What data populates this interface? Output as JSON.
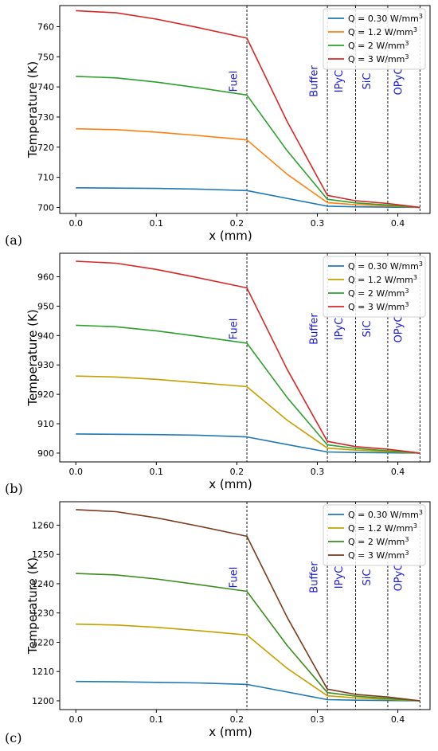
{
  "chart_data": [
    {
      "type": "line",
      "panel_label": "(a)",
      "xlabel": "x (mm)",
      "ylabel": "Temperature (K)",
      "xlim": [
        -0.02,
        0.44
      ],
      "ylim": [
        698,
        767
      ],
      "x_ticks": [
        0.0,
        0.1,
        0.2,
        0.3,
        0.4
      ],
      "x_tick_labels": [
        "0.0",
        "0.1",
        "0.2",
        "0.3",
        "0.4"
      ],
      "y_ticks": [
        700,
        710,
        720,
        730,
        740,
        750,
        760
      ],
      "y_tick_labels": [
        "700",
        "710",
        "720",
        "730",
        "740",
        "750",
        "760"
      ],
      "boundaries": [
        0.2125,
        0.3125,
        0.3475,
        0.3875,
        0.4275
      ],
      "regions": [
        {
          "label": "Fuel",
          "x": 0.2
        },
        {
          "label": "Buffer",
          "x": 0.3
        },
        {
          "label": "IPyC",
          "x": 0.331
        },
        {
          "label": "SiC",
          "x": 0.366
        },
        {
          "label": "OPyC",
          "x": 0.405
        }
      ],
      "legend": {
        "position": "top-right"
      },
      "series": [
        {
          "name": "Q = 0.30 W/mm",
          "sup": "3",
          "color": "#1f77b4",
          "x": [
            0,
            0.05,
            0.1,
            0.15,
            0.2125,
            0.2625,
            0.3125,
            0.3475,
            0.3875,
            0.4275
          ],
          "y": [
            706.5,
            706.4,
            706.3,
            706.1,
            705.6,
            703.0,
            700.4,
            700.2,
            700.1,
            700.0
          ]
        },
        {
          "name": "Q = 1.2 W/mm",
          "sup": "3",
          "color": "#ff7f0e",
          "x": [
            0,
            0.05,
            0.1,
            0.15,
            0.2125,
            0.2625,
            0.3125,
            0.3475,
            0.3875,
            0.4275
          ],
          "y": [
            726.1,
            725.8,
            725.0,
            723.9,
            722.4,
            711.0,
            701.6,
            700.9,
            700.5,
            700.0
          ]
        },
        {
          "name": "Q = 2 W/mm",
          "sup": "3",
          "color": "#2ca02c",
          "x": [
            0,
            0.05,
            0.1,
            0.15,
            0.2125,
            0.2625,
            0.3125,
            0.3475,
            0.3875,
            0.4275
          ],
          "y": [
            743.5,
            743.0,
            741.6,
            739.8,
            737.3,
            718.8,
            702.7,
            701.5,
            700.8,
            700.0
          ]
        },
        {
          "name": "Q = 3 W/mm",
          "sup": "3",
          "color": "#d62728",
          "x": [
            0,
            0.05,
            0.1,
            0.15,
            0.2125,
            0.2625,
            0.3125,
            0.3475,
            0.3875,
            0.4275
          ],
          "y": [
            765.3,
            764.6,
            762.5,
            759.8,
            756.2,
            728.5,
            704.0,
            702.2,
            701.3,
            700.0
          ]
        }
      ]
    },
    {
      "type": "line",
      "panel_label": "(b)",
      "xlabel": "x (mm)",
      "ylabel": "Temperature (K)",
      "xlim": [
        -0.02,
        0.44
      ],
      "ylim": [
        897,
        968
      ],
      "x_ticks": [
        0.0,
        0.1,
        0.2,
        0.3,
        0.4
      ],
      "x_tick_labels": [
        "0.0",
        "0.1",
        "0.2",
        "0.3",
        "0.4"
      ],
      "y_ticks": [
        900,
        910,
        920,
        930,
        940,
        950,
        960
      ],
      "y_tick_labels": [
        "900",
        "910",
        "920",
        "930",
        "940",
        "950",
        "960"
      ],
      "boundaries": [
        0.2125,
        0.3125,
        0.3475,
        0.3875,
        0.4275
      ],
      "regions": [
        {
          "label": "Fuel",
          "x": 0.2
        },
        {
          "label": "Buffer",
          "x": 0.3
        },
        {
          "label": "IPyC",
          "x": 0.331
        },
        {
          "label": "SiC",
          "x": 0.366
        },
        {
          "label": "OPyC",
          "x": 0.405
        }
      ],
      "legend": {
        "position": "top-right"
      },
      "series": [
        {
          "name": "Q = 0.30 W/mm",
          "sup": "3",
          "color": "#1f77b4",
          "x": [
            0,
            0.05,
            0.1,
            0.15,
            0.2125,
            0.2625,
            0.3125,
            0.3475,
            0.3875,
            0.4275
          ],
          "y": [
            906.5,
            906.4,
            906.3,
            906.1,
            905.5,
            902.9,
            900.4,
            900.2,
            900.1,
            900.0
          ]
        },
        {
          "name": "Q = 1.2 W/mm",
          "sup": "3",
          "color": "#c4a000",
          "x": [
            0,
            0.05,
            0.1,
            0.15,
            0.2125,
            0.2625,
            0.3125,
            0.3475,
            0.3875,
            0.4275
          ],
          "y": [
            926.2,
            925.9,
            925.1,
            924.0,
            922.6,
            911.2,
            901.7,
            901.0,
            900.5,
            900.0
          ]
        },
        {
          "name": "Q = 2 W/mm",
          "sup": "3",
          "color": "#2ca02c",
          "x": [
            0,
            0.05,
            0.1,
            0.15,
            0.2125,
            0.2625,
            0.3125,
            0.3475,
            0.3875,
            0.4275
          ],
          "y": [
            943.5,
            943.0,
            941.6,
            939.8,
            937.4,
            918.9,
            902.8,
            901.6,
            900.8,
            900.0
          ]
        },
        {
          "name": "Q = 3 W/mm",
          "sup": "3",
          "color": "#d62728",
          "x": [
            0,
            0.05,
            0.1,
            0.15,
            0.2125,
            0.2625,
            0.3125,
            0.3475,
            0.3875,
            0.4275
          ],
          "y": [
            965.3,
            964.6,
            962.5,
            959.8,
            956.2,
            928.5,
            904.0,
            902.2,
            901.3,
            900.0
          ]
        }
      ]
    },
    {
      "type": "line",
      "panel_label": "(c)",
      "xlabel": "x (mm)",
      "ylabel": "Temperature (K)",
      "xlim": [
        -0.02,
        0.44
      ],
      "ylim": [
        1197,
        1268
      ],
      "x_ticks": [
        0.0,
        0.1,
        0.2,
        0.3,
        0.4
      ],
      "x_tick_labels": [
        "0.0",
        "0.1",
        "0.2",
        "0.3",
        "0.4"
      ],
      "y_ticks": [
        1200,
        1210,
        1220,
        1230,
        1240,
        1250,
        1260
      ],
      "y_tick_labels": [
        "1200",
        "1210",
        "1220",
        "1230",
        "1240",
        "1250",
        "1260"
      ],
      "boundaries": [
        0.2125,
        0.3125,
        0.3475,
        0.3875,
        0.4275
      ],
      "regions": [
        {
          "label": "Fuel",
          "x": 0.2
        },
        {
          "label": "Buffer",
          "x": 0.3
        },
        {
          "label": "IPyC",
          "x": 0.331
        },
        {
          "label": "SiC",
          "x": 0.366
        },
        {
          "label": "OPyC",
          "x": 0.405
        }
      ],
      "legend": {
        "position": "top-right"
      },
      "series": [
        {
          "name": "Q = 0.30 W/mm",
          "sup": "3",
          "color": "#1f77b4",
          "x": [
            0,
            0.05,
            0.1,
            0.15,
            0.2125,
            0.2625,
            0.3125,
            0.3475,
            0.3875,
            0.4275
          ],
          "y": [
            1206.6,
            1206.5,
            1206.3,
            1206.1,
            1205.6,
            1203.0,
            1200.4,
            1200.2,
            1200.1,
            1200.0
          ]
        },
        {
          "name": "Q = 1.2 W/mm",
          "sup": "3",
          "color": "#c4a000",
          "x": [
            0,
            0.05,
            0.1,
            0.15,
            0.2125,
            0.2625,
            0.3125,
            0.3475,
            0.3875,
            0.4275
          ],
          "y": [
            1226.2,
            1225.9,
            1225.1,
            1224.0,
            1222.5,
            1211.1,
            1201.7,
            1201.0,
            1200.5,
            1200.0
          ]
        },
        {
          "name": "Q = 2 W/mm",
          "sup": "3",
          "color": "#3c8c1e",
          "x": [
            0,
            0.05,
            0.1,
            0.15,
            0.2125,
            0.2625,
            0.3125,
            0.3475,
            0.3875,
            0.4275
          ],
          "y": [
            1243.5,
            1243.0,
            1241.6,
            1239.8,
            1237.4,
            1218.9,
            1202.8,
            1201.6,
            1200.8,
            1200.0
          ]
        },
        {
          "name": "Q = 3 W/mm",
          "sup": "3",
          "color": "#7a3b1e",
          "x": [
            0,
            0.05,
            0.1,
            0.15,
            0.2125,
            0.2625,
            0.3125,
            0.3475,
            0.3875,
            0.4275
          ],
          "y": [
            1265.3,
            1264.6,
            1262.5,
            1259.8,
            1256.2,
            1228.5,
            1204.0,
            1202.2,
            1201.3,
            1200.0
          ]
        }
      ]
    }
  ]
}
